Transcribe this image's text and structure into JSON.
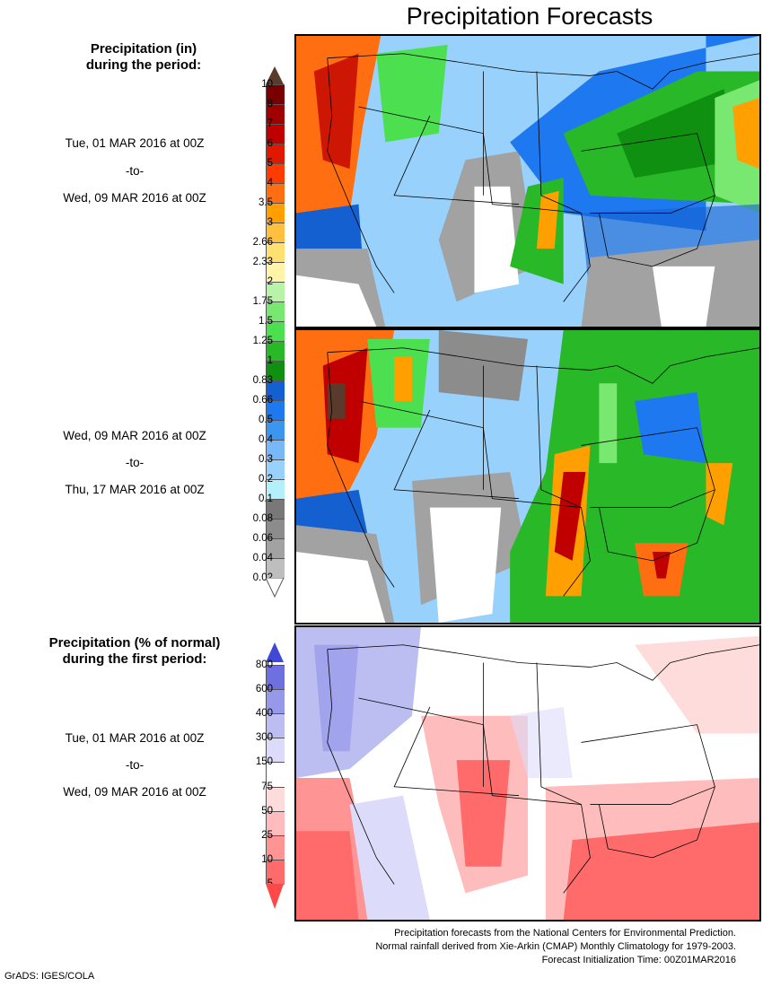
{
  "header": {
    "title": "Precipitation Forecasts"
  },
  "section1": {
    "title_line1": "Precipitation (in)",
    "title_line2": "during the period:",
    "period1": {
      "start": "Tue, 01 MAR 2016 at 00Z",
      "sep": "-to-",
      "end": "Wed, 09 MAR 2016 at 00Z"
    },
    "period2": {
      "start": "Wed, 09 MAR 2016 at 00Z",
      "sep": "-to-",
      "end": "Thu, 17 MAR 2016 at 00Z"
    }
  },
  "section2": {
    "title_line1": "Precipitation (% of normal)",
    "title_line2": "during the first period:",
    "period": {
      "start": "Tue, 01 MAR 2016 at 00Z",
      "sep": "-to-",
      "end": "Wed, 09 MAR 2016 at 00Z"
    }
  },
  "legend_precip": {
    "ticks": [
      "10",
      "8",
      "7",
      "6",
      "5",
      "4",
      "3.5",
      "3",
      "2.66",
      "2.33",
      "2",
      "1.75",
      "1.5",
      "1.25",
      "1",
      "0.83",
      "0.66",
      "0.5",
      "0.4",
      "0.3",
      "0.2",
      "0.1",
      "0.08",
      "0.06",
      "0.04",
      "0.02"
    ],
    "colors": [
      "#7a0000",
      "#a00000",
      "#c00000",
      "#e01800",
      "#ff3c00",
      "#ff6e10",
      "#ffa000",
      "#ffc040",
      "#ffe070",
      "#fff4a8",
      "#b8f4a8",
      "#78e870",
      "#4ce050",
      "#28b828",
      "#109010",
      "#1460d0",
      "#1e78f0",
      "#3c96f0",
      "#78b8f8",
      "#98d2fc",
      "#b4f0fa",
      "#787878",
      "#8c8c8c",
      "#a2a2a2",
      "#bebebe"
    ],
    "top_arrow_color": "#5a3a2a",
    "bottom_arrow_color": "#ffffff"
  },
  "legend_pct": {
    "ticks": [
      "800",
      "600",
      "400",
      "300",
      "150",
      "75",
      "50",
      "25",
      "10",
      "5"
    ],
    "colors": [
      "#6e70e0",
      "#9698ea",
      "#bcbef2",
      "#dcdcfa",
      "#ffffff",
      "#ffdcdc",
      "#ffbcbc",
      "#ff9494",
      "#ff6a6a"
    ],
    "top_arrow_color": "#4048d8",
    "bottom_arrow_color": "#ff4848"
  },
  "footer": {
    "line1": "Precipitation forecasts from the National Centers for Environmental Prediction.",
    "line2": "Normal rainfall derived from Xie-Arkin (CMAP) Monthly Climatology for 1979-2003.",
    "line3": "Forecast Initialization Time: 00Z01MAR2016",
    "credit": "GrADS: IGES/COLA"
  },
  "maps": [
    {
      "name": "week1-precip",
      "period": "01 MAR - 09 MAR 2016"
    },
    {
      "name": "week2-precip",
      "period": "09 MAR - 17 MAR 2016"
    },
    {
      "name": "week1-percent-normal",
      "period": "01 MAR - 09 MAR 2016"
    }
  ]
}
